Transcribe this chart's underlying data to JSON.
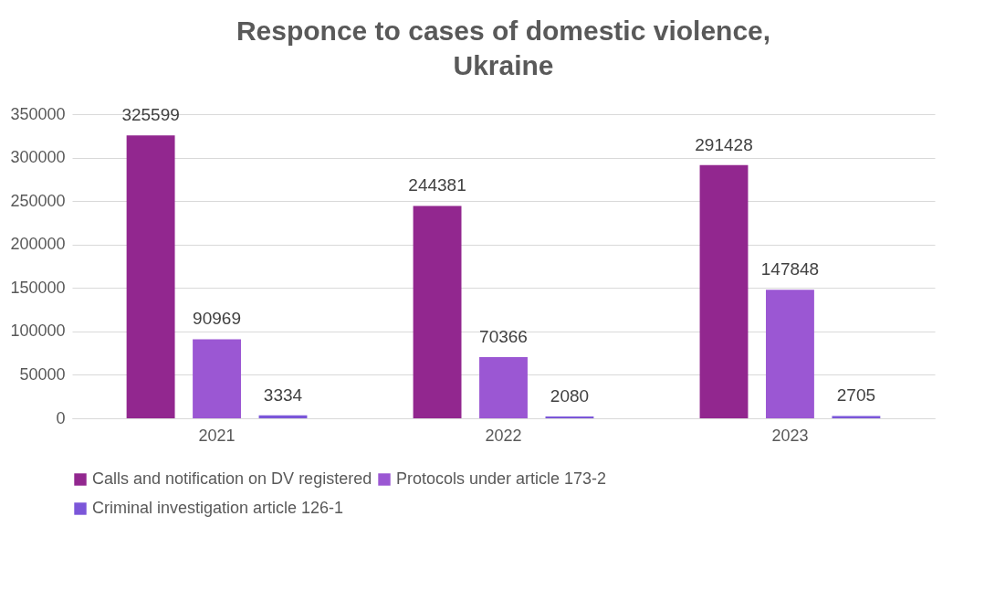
{
  "chart_data": {
    "type": "bar",
    "title": "Responce to cases of domestic violence,\nUkraine",
    "categories": [
      "2021",
      "2022",
      "2023"
    ],
    "series": [
      {
        "name": "Calls and notification on DV registered",
        "color": "#92278f",
        "values": [
          325599,
          244381,
          291428
        ]
      },
      {
        "name": "Protocols under article 173-2",
        "color": "#9b57d3",
        "values": [
          90969,
          70366,
          147848
        ]
      },
      {
        "name": "Criminal investigation article 126-1",
        "color": "#7b56d9",
        "values": [
          3334,
          2080,
          2705
        ]
      }
    ],
    "ylim": [
      0,
      350000
    ],
    "yticks": [
      0,
      50000,
      100000,
      150000,
      200000,
      250000,
      300000,
      350000
    ],
    "grid": "y",
    "legend": "bottom",
    "data_labels": true
  }
}
